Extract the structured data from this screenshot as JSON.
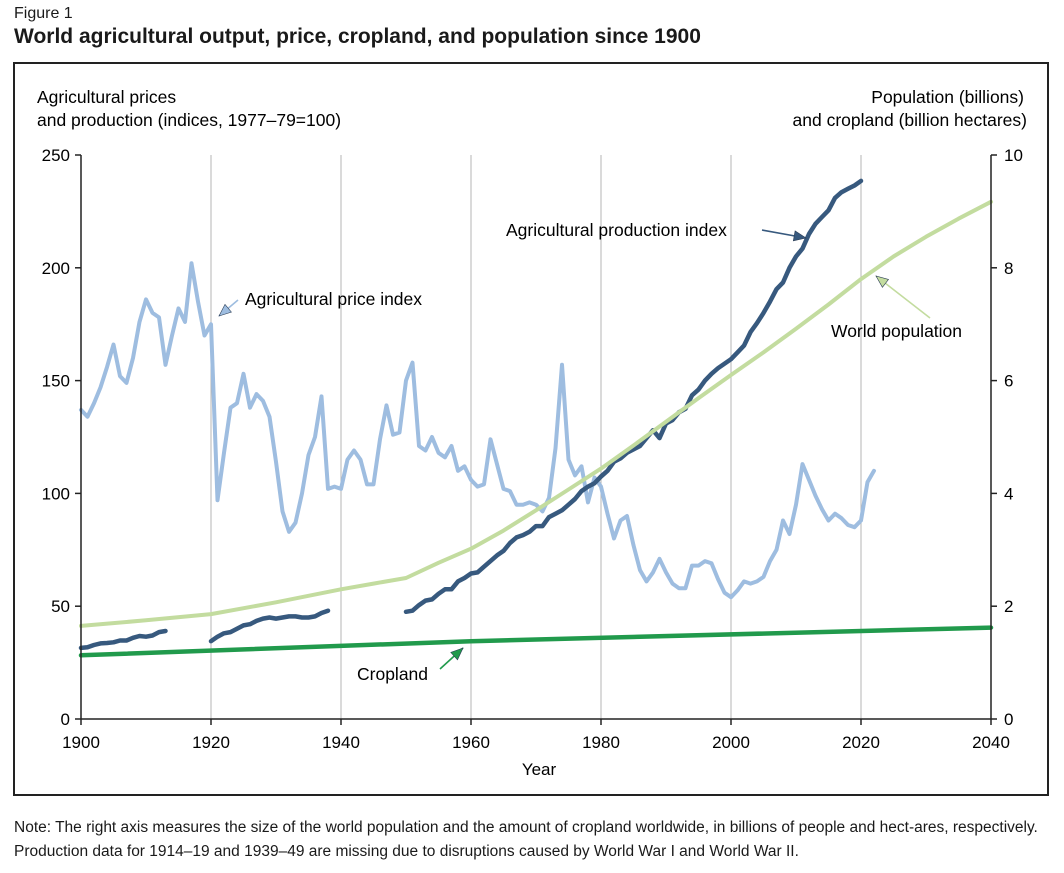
{
  "figure_label": "Figure 1",
  "title": "World agricultural output, price, cropland, and population since 1900",
  "note": "Note: The right axis measures the size of the world population and the amount of cropland worldwide, in billions of people and hect-ares, respectively. Production data for 1914–19 and 1939–49 are missing due to disruptions caused by World War I and World War II.",
  "colors": {
    "price": "#9ebde0",
    "production": "#37597e",
    "population": "#c3dc9f",
    "cropland": "#219a4c",
    "grid": "#b5b5b5",
    "axis": "#222222"
  },
  "chart_data": {
    "type": "line",
    "xlabel": "Year",
    "ylabel_left": [
      "Agricultural prices",
      "and production (indices, 1977–79=100)"
    ],
    "ylabel_right": [
      "Population (billions)",
      "and cropland (billion hectares)"
    ],
    "xlim": [
      1900,
      2040
    ],
    "ylim_left": [
      0,
      250
    ],
    "ylim_right": [
      0,
      10
    ],
    "x_ticks": [
      1900,
      1920,
      1940,
      1960,
      1980,
      2000,
      2020,
      2040
    ],
    "y_ticks_left": [
      0,
      50,
      100,
      150,
      200,
      250
    ],
    "y_ticks_right": [
      0,
      2,
      4,
      6,
      8,
      10
    ],
    "grid": "vertical",
    "annotations": [
      {
        "text": "Agricultural production index",
        "series": "production"
      },
      {
        "text": "Agricultural price index",
        "series": "price"
      },
      {
        "text": "World population",
        "series": "population"
      },
      {
        "text": "Cropland",
        "series": "cropland"
      }
    ],
    "series": [
      {
        "id": "price",
        "axis": "left",
        "x": [
          1900,
          1901,
          1902,
          1903,
          1904,
          1905,
          1906,
          1907,
          1908,
          1909,
          1910,
          1911,
          1912,
          1913,
          1914,
          1915,
          1916,
          1917,
          1918,
          1919,
          1920,
          1921,
          1922,
          1923,
          1924,
          1925,
          1926,
          1927,
          1928,
          1929,
          1930,
          1931,
          1932,
          1933,
          1934,
          1935,
          1936,
          1937,
          1938,
          1939,
          1940,
          1941,
          1942,
          1943,
          1944,
          1945,
          1946,
          1947,
          1948,
          1949,
          1950,
          1951,
          1952,
          1953,
          1954,
          1955,
          1956,
          1957,
          1958,
          1959,
          1960,
          1961,
          1962,
          1963,
          1964,
          1965,
          1966,
          1967,
          1968,
          1969,
          1970,
          1971,
          1972,
          1973,
          1974,
          1975,
          1976,
          1977,
          1978,
          1979,
          1980,
          1981,
          1982,
          1983,
          1984,
          1985,
          1986,
          1987,
          1988,
          1989,
          1990,
          1991,
          1992,
          1993,
          1994,
          1995,
          1996,
          1997,
          1998,
          1999,
          2000,
          2001,
          2002,
          2003,
          2004,
          2005,
          2006,
          2007,
          2008,
          2009,
          2010,
          2011,
          2012,
          2013,
          2014,
          2015,
          2016,
          2017,
          2018,
          2019,
          2020,
          2021,
          2022
        ],
        "values": [
          137,
          134,
          140,
          147,
          156,
          166,
          152,
          149,
          160,
          176,
          186,
          180,
          178,
          157,
          170,
          182,
          176,
          202,
          185,
          170,
          175,
          97,
          118,
          138,
          140,
          153,
          138,
          144,
          141,
          134,
          114,
          92,
          83,
          87,
          100,
          117,
          125,
          143,
          102,
          103,
          102,
          115,
          119,
          115,
          104,
          104,
          124,
          139,
          126,
          127,
          150,
          158,
          121,
          119,
          125,
          118,
          116,
          121,
          110,
          112,
          106,
          103,
          104,
          124,
          113,
          102,
          101,
          95,
          95,
          96,
          95,
          92,
          98,
          120,
          157,
          115,
          108,
          112,
          96,
          107,
          103,
          91,
          80,
          88,
          90,
          77,
          66,
          61,
          65,
          71,
          65,
          60,
          58,
          58,
          68,
          68,
          70,
          69,
          62,
          56,
          54,
          57,
          61,
          60,
          61,
          63,
          70,
          75,
          88,
          82,
          95,
          113,
          106,
          99,
          93,
          88,
          91,
          89,
          86,
          85,
          88,
          105,
          110
        ]
      },
      {
        "id": "production",
        "axis": "left",
        "segments": [
          {
            "x": [
              1900,
              1901,
              1902,
              1903,
              1904,
              1905,
              1906,
              1907,
              1908,
              1909,
              1910,
              1911,
              1912,
              1913
            ],
            "values": [
              31.5,
              31.8,
              32.8,
              33.5,
              33.7,
              34.0,
              34.8,
              34.8,
              36.0,
              36.8,
              36.5,
              37.0,
              38.5,
              39.0
            ]
          },
          {
            "x": [
              1920,
              1921,
              1922,
              1923,
              1924,
              1925,
              1926,
              1927,
              1928,
              1929,
              1930,
              1931,
              1932,
              1933,
              1934,
              1935,
              1936,
              1937,
              1938
            ],
            "values": [
              34.5,
              36.5,
              38.0,
              38.5,
              40.0,
              41.5,
              42.0,
              43.5,
              44.5,
              45.0,
              44.5,
              45.0,
              45.5,
              45.5,
              45.0,
              45.0,
              45.5,
              47.0,
              48.0
            ]
          },
          {
            "x": [
              1950,
              1951,
              1952,
              1953,
              1954,
              1955,
              1956,
              1957,
              1958,
              1959,
              1960,
              1961,
              1962,
              1963,
              1964,
              1965,
              1966,
              1967,
              1968,
              1969,
              1970,
              1971,
              1972,
              1973,
              1974,
              1975,
              1976,
              1977,
              1978,
              1979,
              1980,
              1981,
              1982,
              1983,
              1984,
              1985,
              1986,
              1987,
              1988,
              1989,
              1990,
              1991,
              1992,
              1993,
              1994,
              1995,
              1996,
              1997,
              1998,
              1999,
              2000,
              2001,
              2002,
              2003,
              2004,
              2005,
              2006,
              2007,
              2008,
              2009,
              2010,
              2011,
              2012,
              2013,
              2014,
              2015,
              2016,
              2017,
              2018,
              2019,
              2020
            ],
            "values": [
              47.5,
              48.0,
              50.5,
              52.5,
              53.0,
              55.5,
              57.5,
              57.5,
              61.0,
              62.5,
              64.5,
              65.0,
              67.5,
              70.0,
              72.5,
              74.5,
              78.0,
              80.5,
              81.5,
              83.0,
              85.5,
              85.5,
              89.5,
              91.0,
              92.5,
              95.0,
              97.5,
              101.0,
              103.0,
              104.5,
              107.5,
              110.0,
              114.0,
              115.5,
              118.0,
              119.5,
              121.0,
              124.5,
              128.0,
              124.5,
              131.0,
              132.5,
              136.0,
              137.5,
              143.5,
              146.0,
              150.0,
              153.0,
              155.5,
              157.5,
              159.5,
              162.5,
              165.5,
              171.5,
              175.5,
              180.0,
              185.0,
              190.5,
              193.5,
              200.0,
              205.0,
              208.5,
              215.0,
              219.5,
              222.5,
              225.5,
              231.0,
              233.5,
              235.0,
              236.5,
              238.5
            ]
          }
        ]
      },
      {
        "id": "population",
        "axis": "right",
        "x": [
          1900,
          1910,
          1920,
          1930,
          1940,
          1945,
          1950,
          1955,
          1960,
          1965,
          1970,
          1975,
          1980,
          1985,
          1990,
          1995,
          2000,
          2005,
          2010,
          2015,
          2020,
          2025,
          2030,
          2035,
          2040
        ],
        "values": [
          1.65,
          1.75,
          1.86,
          2.07,
          2.3,
          2.4,
          2.5,
          2.77,
          3.02,
          3.34,
          3.7,
          4.07,
          4.44,
          4.85,
          5.27,
          5.69,
          6.1,
          6.5,
          6.92,
          7.35,
          7.8,
          8.2,
          8.55,
          8.87,
          9.17
        ]
      },
      {
        "id": "cropland",
        "axis": "right",
        "x": [
          1900,
          1960,
          2040
        ],
        "values": [
          1.13,
          1.38,
          1.62
        ]
      }
    ]
  }
}
